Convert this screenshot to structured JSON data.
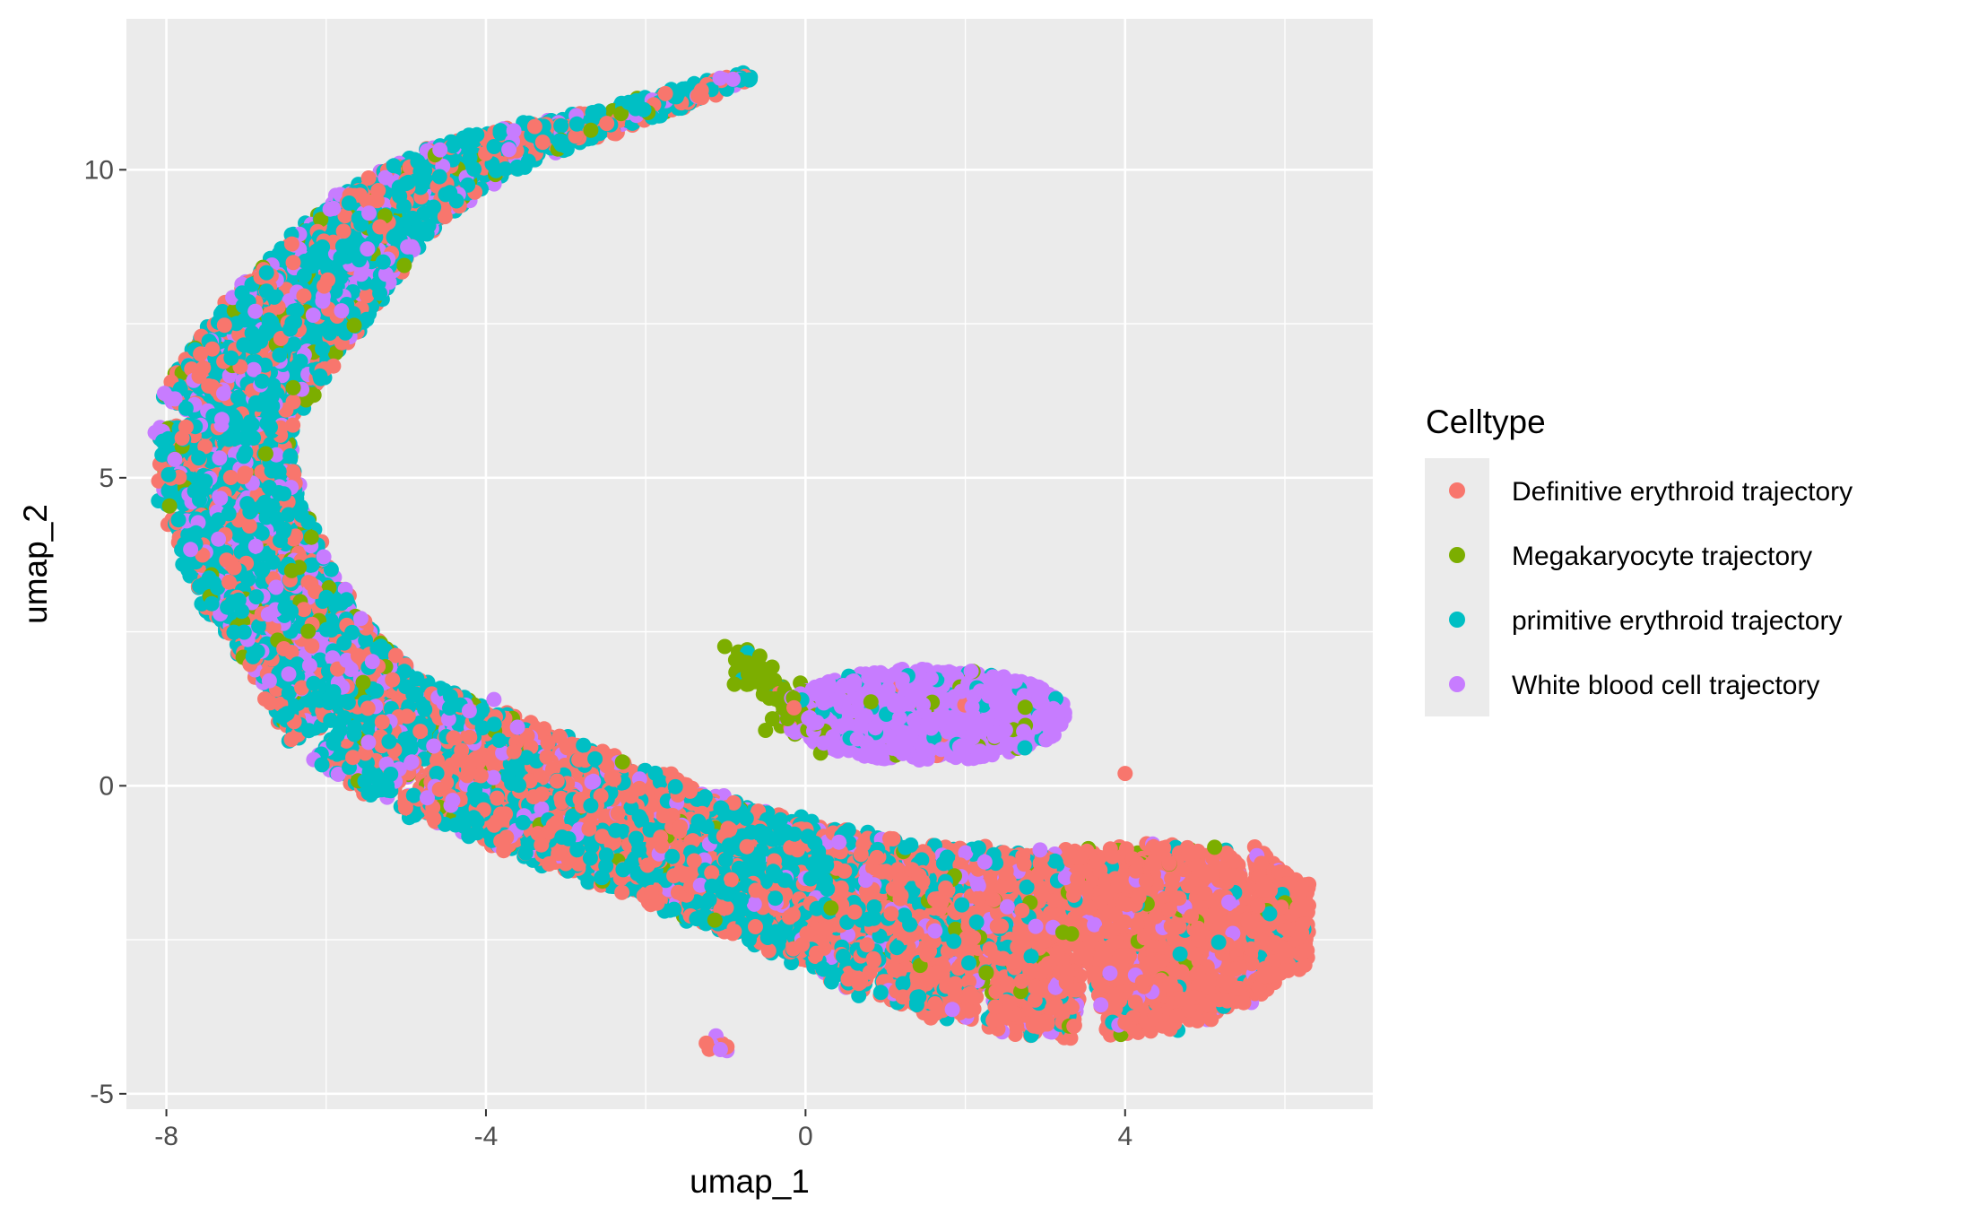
{
  "chart_data": {
    "type": "scatter",
    "title": "",
    "xlabel": "umap_1",
    "ylabel": "umap_2",
    "xlim": [
      -8.5,
      7.1
    ],
    "ylim": [
      -5.25,
      12.45
    ],
    "x_ticks": [
      -8,
      -4,
      0,
      4
    ],
    "y_ticks": [
      -5,
      0,
      5,
      10
    ],
    "x_tick_labels": [
      "-8",
      "-4",
      "0",
      "4"
    ],
    "y_tick_labels": [
      "-5",
      "0",
      "5",
      "10"
    ],
    "grid": true,
    "legend": {
      "title": "Celltype",
      "position": "right"
    },
    "series": [
      {
        "name": "Definitive erythroid trajectory",
        "color": "#F8766D"
      },
      {
        "name": "Megakaryocyte trajectory",
        "color": "#7CAE00"
      },
      {
        "name": "primitive erythroid trajectory",
        "color": "#00BFC4"
      },
      {
        "name": "White blood cell trajectory",
        "color": "#C77CFF"
      }
    ],
    "regions": [
      {
        "label": "upper arm",
        "x_range": [
          -7.9,
          -0.6
        ],
        "y_range": [
          2.0,
          11.6
        ],
        "mix": {
          "Definitive erythroid trajectory": 0.22,
          "Megakaryocyte trajectory": 0.05,
          "primitive erythroid trajectory": 0.55,
          "White blood cell trajectory": 0.18
        }
      },
      {
        "label": "lower band",
        "x_range": [
          -6.5,
          6.4
        ],
        "y_range": [
          -4.0,
          1.0
        ],
        "mix": {
          "Definitive erythroid trajectory": 0.5,
          "Megakaryocyte trajectory": 0.04,
          "primitive erythroid trajectory": 0.38,
          "White blood cell trajectory": 0.08
        }
      },
      {
        "label": "white blood cell cluster",
        "x_range": [
          -0.7,
          3.5
        ],
        "y_range": [
          0.3,
          2.0
        ],
        "mix": {
          "Definitive erythroid trajectory": 0.02,
          "Megakaryocyte trajectory": 0.05,
          "primitive erythroid trajectory": 0.08,
          "White blood cell trajectory": 0.85
        }
      },
      {
        "label": "megakaryocyte streak",
        "x_range": [
          -1.3,
          0.4
        ],
        "y_range": [
          0.3,
          2.3
        ],
        "mix": {
          "Megakaryocyte trajectory": 0.85,
          "primitive erythroid trajectory": 0.1,
          "Definitive erythroid trajectory": 0.05
        }
      },
      {
        "label": "small island",
        "x_range": [
          -1.3,
          -0.9
        ],
        "y_range": [
          -4.4,
          -4.0
        ],
        "mix": {
          "Definitive erythroid trajectory": 0.6,
          "White blood cell trajectory": 0.4
        }
      }
    ]
  }
}
